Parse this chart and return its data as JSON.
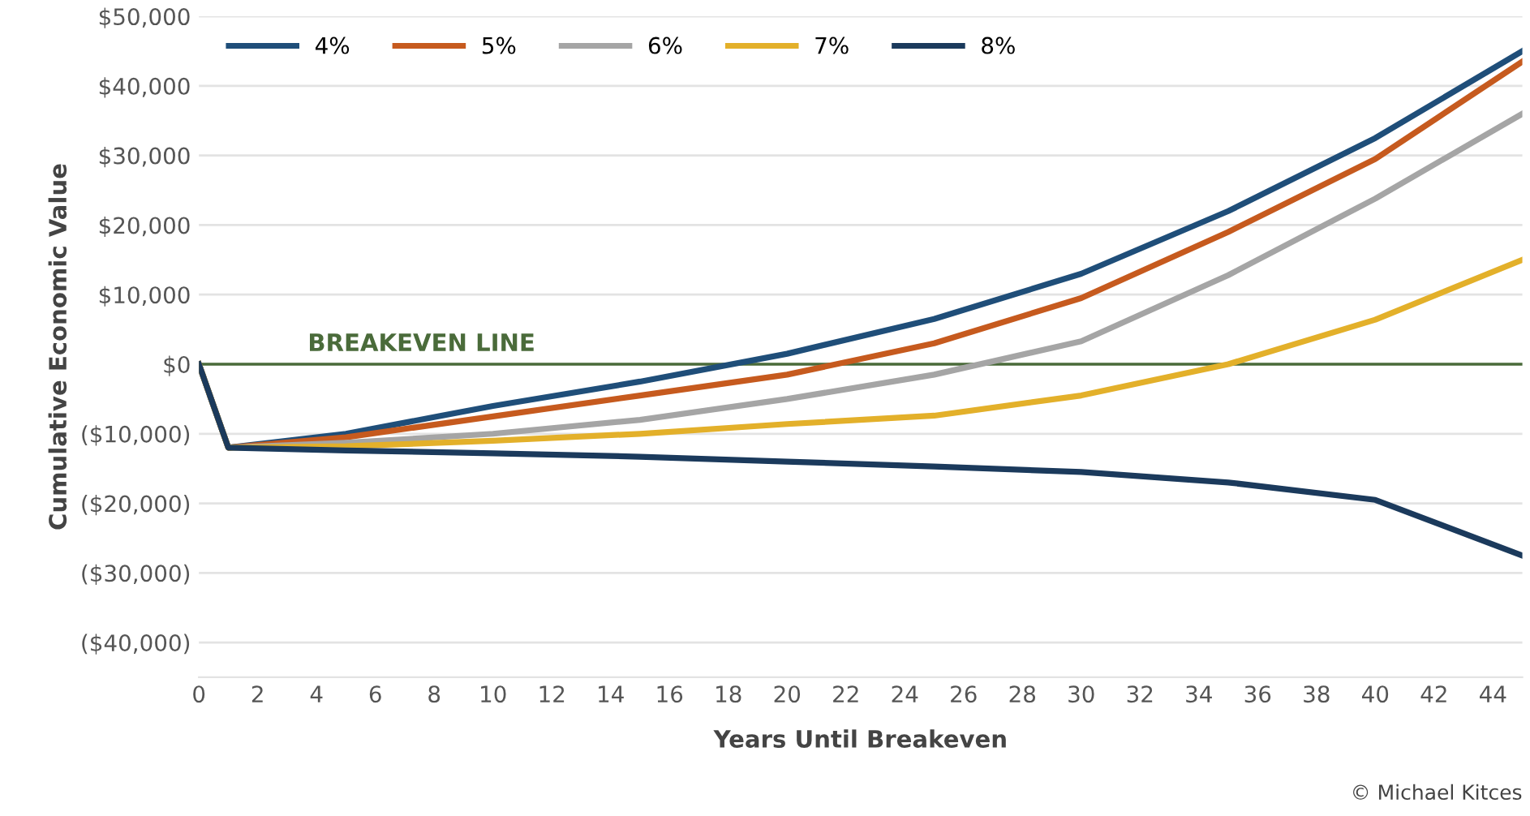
{
  "chart_data": {
    "type": "line",
    "xlabel": "Years Until Breakeven",
    "ylabel": "Cumulative Economic Value",
    "x": [
      0,
      1,
      5,
      10,
      15,
      20,
      25,
      30,
      35,
      40,
      45
    ],
    "series": [
      {
        "name": "4%",
        "color": "#1f4e79",
        "values": [
          0,
          -12000,
          -10000,
          -6000,
          -2500,
          1500,
          6500,
          13000,
          22000,
          32500,
          45000
        ]
      },
      {
        "name": "5%",
        "color": "#c65a1e",
        "values": [
          0,
          -12000,
          -10500,
          -7500,
          -4500,
          -1500,
          3000,
          9500,
          19000,
          29500,
          43500
        ]
      },
      {
        "name": "6%",
        "color": "#a5a5a5",
        "values": [
          0,
          -12000,
          -11300,
          -10000,
          -8000,
          -5000,
          -1500,
          3300,
          12800,
          23800,
          36000
        ]
      },
      {
        "name": "7%",
        "color": "#e3b02a",
        "values": [
          0,
          -12000,
          -11800,
          -11000,
          -10000,
          -8600,
          -7400,
          -4500,
          0,
          6400,
          15000
        ]
      },
      {
        "name": "8%",
        "color": "#1b3a5c",
        "values": [
          0,
          -12000,
          -12400,
          -12800,
          -13300,
          -14000,
          -14700,
          -15500,
          -17000,
          -19500,
          -27500
        ]
      }
    ],
    "xlim": [
      0,
      45
    ],
    "xticks": [
      0,
      2,
      4,
      6,
      8,
      10,
      12,
      14,
      16,
      18,
      20,
      22,
      24,
      26,
      28,
      30,
      32,
      34,
      36,
      38,
      40,
      42,
      44
    ],
    "ylim": [
      -45000,
      50000
    ],
    "yticks": [
      {
        "value": 50000,
        "label": "$50,000"
      },
      {
        "value": 40000,
        "label": "$40,000"
      },
      {
        "value": 30000,
        "label": "$30,000"
      },
      {
        "value": 20000,
        "label": "$20,000"
      },
      {
        "value": 10000,
        "label": "$10,000"
      },
      {
        "value": 0,
        "label": "$0"
      },
      {
        "value": -10000,
        "label": "($10,000)"
      },
      {
        "value": -20000,
        "label": "($20,000)"
      },
      {
        "value": -30000,
        "label": "($30,000)"
      },
      {
        "value": -40000,
        "label": "($40,000)"
      }
    ],
    "ref_lines": [
      {
        "axis": "y",
        "value": 0,
        "label": "BREAKEVEN LINE",
        "color": "#4a6b3a"
      }
    ],
    "annotations": [
      "© Michael Kitces"
    ],
    "grid": "y",
    "legend": "top",
    "marker": "none",
    "line_style": "solid"
  }
}
